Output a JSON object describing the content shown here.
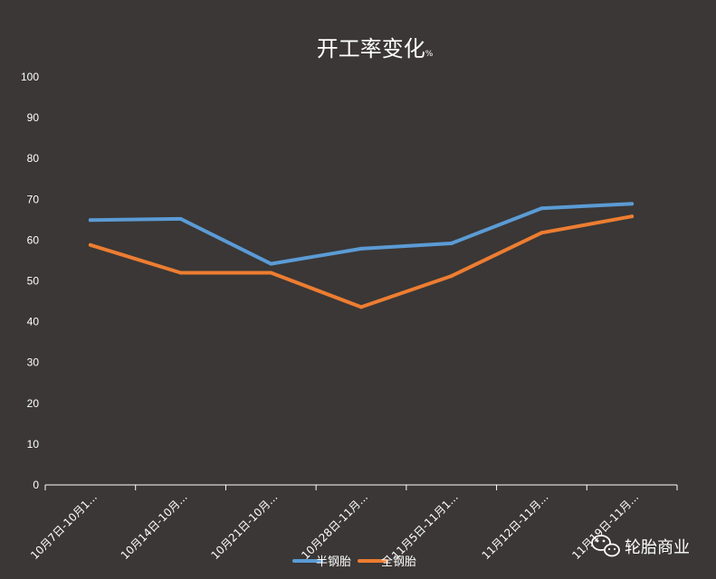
{
  "chart_data": {
    "type": "line",
    "title": "开工率变化",
    "title_unit": "%",
    "categories": [
      "10月7日-10月1...",
      "10月14日-10月...",
      "10月21日-10月...",
      "10月28日-11月...",
      "11月5日-11月1...",
      "11月12日-11月...",
      "11月19日-11月..."
    ],
    "series": [
      {
        "name": "半钢胎",
        "color": "#5b9bd5",
        "values": [
          64.9,
          65.2,
          54.2,
          57.9,
          59.2,
          67.8,
          68.9
        ]
      },
      {
        "name": "全钢胎",
        "color": "#ed7d31",
        "values": [
          58.8,
          52.0,
          52.0,
          43.6,
          51.2,
          61.8,
          65.8
        ]
      }
    ],
    "ylim": [
      0,
      100
    ],
    "yticks": [
      0,
      10,
      20,
      30,
      40,
      50,
      60,
      70,
      80,
      90,
      100
    ],
    "grid": false,
    "legend_position": "bottom"
  },
  "watermark": {
    "text": "轮胎商业",
    "icon": "wechat-icon"
  }
}
